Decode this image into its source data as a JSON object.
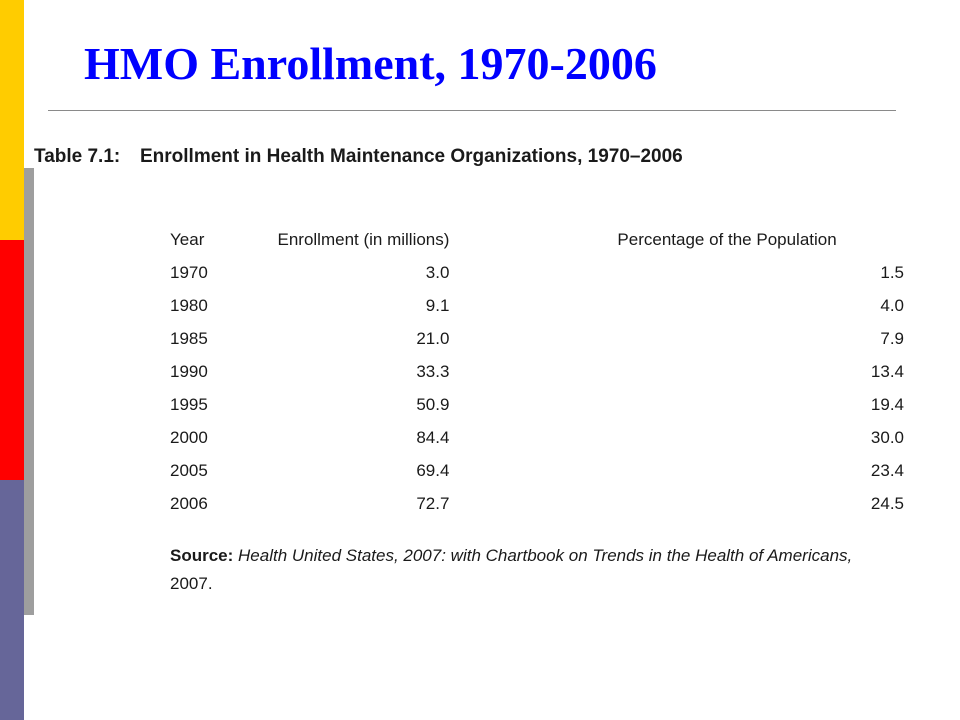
{
  "slide": {
    "title": "HMO Enrollment, 1970-2006"
  },
  "table": {
    "caption_label": "Table 7.1:",
    "caption_title": "Enrollment in Health Maintenance Organizations, 1970–2006",
    "headers": {
      "year": "Year",
      "enrollment": "Enrollment (in millions)",
      "percentage": "Percentage of the Population"
    },
    "rows": [
      {
        "year": "1970",
        "enrollment": "3.0",
        "percentage": "1.5"
      },
      {
        "year": "1980",
        "enrollment": "9.1",
        "percentage": "4.0"
      },
      {
        "year": "1985",
        "enrollment": "21.0",
        "percentage": "7.9"
      },
      {
        "year": "1990",
        "enrollment": "33.3",
        "percentage": "13.4"
      },
      {
        "year": "1995",
        "enrollment": "50.9",
        "percentage": "19.4"
      },
      {
        "year": "2000",
        "enrollment": "84.4",
        "percentage": "30.0"
      },
      {
        "year": "2005",
        "enrollment": "69.4",
        "percentage": "23.4"
      },
      {
        "year": "2006",
        "enrollment": "72.7",
        "percentage": "24.5"
      }
    ],
    "source_label": "Source:",
    "source_italic": "Health United States, 2007: with Chartbook on Trends in the Health of Americans,",
    "source_year": "2007."
  },
  "colors": {
    "title": "#0000ff",
    "bar_yellow": "#ffcc00",
    "bar_red": "#ff0000",
    "bar_blue": "#666699"
  }
}
